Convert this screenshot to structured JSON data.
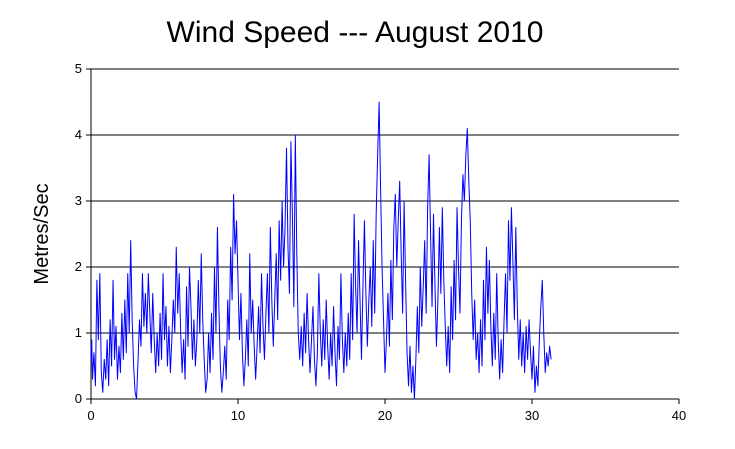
{
  "chart_data": {
    "type": "line",
    "title": "Wind Speed --- August 2010",
    "xlabel": "",
    "ylabel": "Metres/Sec",
    "xlim": [
      0,
      40
    ],
    "ylim": [
      0,
      5
    ],
    "x_ticks": [
      0,
      10,
      20,
      30,
      40
    ],
    "y_ticks": [
      0,
      1,
      2,
      3,
      4,
      5
    ],
    "grid": "horizontal",
    "legend": "none",
    "series": [
      {
        "name": "",
        "color": "#0000ff",
        "points": [
          [
            0.0,
            0.6
          ],
          [
            0.05,
            0.9
          ],
          [
            0.1,
            0.3
          ],
          [
            0.2,
            0.7
          ],
          [
            0.3,
            0.2
          ],
          [
            0.4,
            1.8
          ],
          [
            0.5,
            0.9
          ],
          [
            0.6,
            1.9
          ],
          [
            0.7,
            0.4
          ],
          [
            0.8,
            0.1
          ],
          [
            0.9,
            0.6
          ],
          [
            1.0,
            0.3
          ],
          [
            1.1,
            0.9
          ],
          [
            1.2,
            0.2
          ],
          [
            1.3,
            1.2
          ],
          [
            1.4,
            0.5
          ],
          [
            1.5,
            1.8
          ],
          [
            1.6,
            0.6
          ],
          [
            1.7,
            1.1
          ],
          [
            1.8,
            0.3
          ],
          [
            1.9,
            0.8
          ],
          [
            2.0,
            0.4
          ],
          [
            2.1,
            1.3
          ],
          [
            2.2,
            0.6
          ],
          [
            2.3,
            1.5
          ],
          [
            2.4,
            0.7
          ],
          [
            2.5,
            1.9
          ],
          [
            2.6,
            1.0
          ],
          [
            2.7,
            2.4
          ],
          [
            2.8,
            1.2
          ],
          [
            2.9,
            0.5
          ],
          [
            3.0,
            0.1
          ],
          [
            3.1,
            0.0
          ],
          [
            3.2,
            0.6
          ],
          [
            3.3,
            1.2
          ],
          [
            3.4,
            0.8
          ],
          [
            3.5,
            1.9
          ],
          [
            3.6,
            1.1
          ],
          [
            3.7,
            1.6
          ],
          [
            3.8,
            1.0
          ],
          [
            3.9,
            1.9
          ],
          [
            4.0,
            1.3
          ],
          [
            4.1,
            0.7
          ],
          [
            4.2,
            1.6
          ],
          [
            4.3,
            0.9
          ],
          [
            4.4,
            0.4
          ],
          [
            4.5,
            1.0
          ],
          [
            4.6,
            0.5
          ],
          [
            4.7,
            1.3
          ],
          [
            4.8,
            0.6
          ],
          [
            4.9,
            1.9
          ],
          [
            5.0,
            0.9
          ],
          [
            5.1,
            1.4
          ],
          [
            5.2,
            0.5
          ],
          [
            5.3,
            1.1
          ],
          [
            5.4,
            0.4
          ],
          [
            5.5,
            0.9
          ],
          [
            5.6,
            1.5
          ],
          [
            5.7,
            1.0
          ],
          [
            5.8,
            2.3
          ],
          [
            5.9,
            1.3
          ],
          [
            6.0,
            1.9
          ],
          [
            6.1,
            1.0
          ],
          [
            6.2,
            0.4
          ],
          [
            6.3,
            0.9
          ],
          [
            6.4,
            0.3
          ],
          [
            6.5,
            1.7
          ],
          [
            6.6,
            0.8
          ],
          [
            6.7,
            2.0
          ],
          [
            6.8,
            1.4
          ],
          [
            6.9,
            0.6
          ],
          [
            7.0,
            1.2
          ],
          [
            7.1,
            0.5
          ],
          [
            7.2,
            0.9
          ],
          [
            7.3,
            1.8
          ],
          [
            7.4,
            1.0
          ],
          [
            7.5,
            2.2
          ],
          [
            7.6,
            1.2
          ],
          [
            7.7,
            0.6
          ],
          [
            7.8,
            0.1
          ],
          [
            7.9,
            0.3
          ],
          [
            8.0,
            1.0
          ],
          [
            8.1,
            0.4
          ],
          [
            8.2,
            1.3
          ],
          [
            8.3,
            0.6
          ],
          [
            8.4,
            2.0
          ],
          [
            8.5,
            1.0
          ],
          [
            8.6,
            2.6
          ],
          [
            8.7,
            1.4
          ],
          [
            8.8,
            0.5
          ],
          [
            8.9,
            0.1
          ],
          [
            9.0,
            0.4
          ],
          [
            9.1,
            0.8
          ],
          [
            9.2,
            0.3
          ],
          [
            9.3,
            1.5
          ],
          [
            9.4,
            0.9
          ],
          [
            9.5,
            2.3
          ],
          [
            9.6,
            1.5
          ],
          [
            9.7,
            3.1
          ],
          [
            9.8,
            2.2
          ],
          [
            9.9,
            2.7
          ],
          [
            10.0,
            1.8
          ],
          [
            10.1,
            0.9
          ],
          [
            10.2,
            1.6
          ],
          [
            10.3,
            0.7
          ],
          [
            10.4,
            0.2
          ],
          [
            10.5,
            0.6
          ],
          [
            10.6,
            1.2
          ],
          [
            10.7,
            0.5
          ],
          [
            10.8,
            2.2
          ],
          [
            10.9,
            1.0
          ],
          [
            11.0,
            1.5
          ],
          [
            11.1,
            0.8
          ],
          [
            11.2,
            0.3
          ],
          [
            11.3,
            0.8
          ],
          [
            11.4,
            1.4
          ],
          [
            11.5,
            0.7
          ],
          [
            11.6,
            1.9
          ],
          [
            11.7,
            1.1
          ],
          [
            11.8,
            0.6
          ],
          [
            11.9,
            1.3
          ],
          [
            12.0,
            1.9
          ],
          [
            12.1,
            1.0
          ],
          [
            12.2,
            2.6
          ],
          [
            12.3,
            1.5
          ],
          [
            12.4,
            0.8
          ],
          [
            12.5,
            1.5
          ],
          [
            12.6,
            2.2
          ],
          [
            12.7,
            1.2
          ],
          [
            12.8,
            2.7
          ],
          [
            12.9,
            1.8
          ],
          [
            13.0,
            3.0
          ],
          [
            13.1,
            2.0
          ],
          [
            13.2,
            2.6
          ],
          [
            13.3,
            3.8
          ],
          [
            13.4,
            2.3
          ],
          [
            13.5,
            1.6
          ],
          [
            13.6,
            3.9
          ],
          [
            13.7,
            2.8
          ],
          [
            13.8,
            1.4
          ],
          [
            13.9,
            4.0
          ],
          [
            14.0,
            2.2
          ],
          [
            14.1,
            1.0
          ],
          [
            14.2,
            0.6
          ],
          [
            14.3,
            1.1
          ],
          [
            14.4,
            0.5
          ],
          [
            14.5,
            1.3
          ],
          [
            14.6,
            0.7
          ],
          [
            14.7,
            1.6
          ],
          [
            14.8,
            0.9
          ],
          [
            14.9,
            0.4
          ],
          [
            15.0,
            0.9
          ],
          [
            15.1,
            1.4
          ],
          [
            15.2,
            0.6
          ],
          [
            15.3,
            0.2
          ],
          [
            15.4,
            0.7
          ],
          [
            15.5,
            1.9
          ],
          [
            15.6,
            1.0
          ],
          [
            15.7,
            0.5
          ],
          [
            15.8,
            1.2
          ],
          [
            15.9,
            0.6
          ],
          [
            16.0,
            1.5
          ],
          [
            16.1,
            0.8
          ],
          [
            16.2,
            0.3
          ],
          [
            16.3,
            1.0
          ],
          [
            16.4,
            0.5
          ],
          [
            16.5,
            1.4
          ],
          [
            16.6,
            0.7
          ],
          [
            16.7,
            0.2
          ],
          [
            16.8,
            1.1
          ],
          [
            16.9,
            0.6
          ],
          [
            17.0,
            1.9
          ],
          [
            17.1,
            0.9
          ],
          [
            17.2,
            0.4
          ],
          [
            17.3,
            1.0
          ],
          [
            17.4,
            0.5
          ],
          [
            17.5,
            1.3
          ],
          [
            17.6,
            0.6
          ],
          [
            17.7,
            1.9
          ],
          [
            17.8,
            0.9
          ],
          [
            17.9,
            2.8
          ],
          [
            18.0,
            1.7
          ],
          [
            18.1,
            1.0
          ],
          [
            18.2,
            2.4
          ],
          [
            18.3,
            1.5
          ],
          [
            18.4,
            0.6
          ],
          [
            18.5,
            1.7
          ],
          [
            18.6,
            2.7
          ],
          [
            18.7,
            1.6
          ],
          [
            18.8,
            0.8
          ],
          [
            18.9,
            1.5
          ],
          [
            19.0,
            2.0
          ],
          [
            19.1,
            1.1
          ],
          [
            19.2,
            2.4
          ],
          [
            19.3,
            1.3
          ],
          [
            19.4,
            2.8
          ],
          [
            19.5,
            3.7
          ],
          [
            19.6,
            4.5
          ],
          [
            19.7,
            3.2
          ],
          [
            19.8,
            2.0
          ],
          [
            19.9,
            1.2
          ],
          [
            20.0,
            0.4
          ],
          [
            20.1,
            0.9
          ],
          [
            20.2,
            1.6
          ],
          [
            20.3,
            0.8
          ],
          [
            20.4,
            2.1
          ],
          [
            20.5,
            1.2
          ],
          [
            20.6,
            2.6
          ],
          [
            20.7,
            3.1
          ],
          [
            20.8,
            2.0
          ],
          [
            20.9,
            2.7
          ],
          [
            21.0,
            3.3
          ],
          [
            21.1,
            2.2
          ],
          [
            21.2,
            1.3
          ],
          [
            21.3,
            3.0
          ],
          [
            21.4,
            1.8
          ],
          [
            21.5,
            0.7
          ],
          [
            21.6,
            0.2
          ],
          [
            21.7,
            0.8
          ],
          [
            21.8,
            0.1
          ],
          [
            21.9,
            0.5
          ],
          [
            22.0,
            0.0
          ],
          [
            22.1,
            0.6
          ],
          [
            22.2,
            1.4
          ],
          [
            22.3,
            0.7
          ],
          [
            22.4,
            2.0
          ],
          [
            22.5,
            1.1
          ],
          [
            22.6,
            1.7
          ],
          [
            22.7,
            2.4
          ],
          [
            22.8,
            1.3
          ],
          [
            22.9,
            2.9
          ],
          [
            23.0,
            3.7
          ],
          [
            23.1,
            2.5
          ],
          [
            23.2,
            1.4
          ],
          [
            23.3,
            2.8
          ],
          [
            23.4,
            1.7
          ],
          [
            23.5,
            0.8
          ],
          [
            23.6,
            1.5
          ],
          [
            23.7,
            2.6
          ],
          [
            23.8,
            1.6
          ],
          [
            23.9,
            2.9
          ],
          [
            24.0,
            1.8
          ],
          [
            24.1,
            1.1
          ],
          [
            24.2,
            0.5
          ],
          [
            24.3,
            1.1
          ],
          [
            24.4,
            0.4
          ],
          [
            24.5,
            1.7
          ],
          [
            24.6,
            0.9
          ],
          [
            24.7,
            2.1
          ],
          [
            24.8,
            1.2
          ],
          [
            24.9,
            2.9
          ],
          [
            25.0,
            2.0
          ],
          [
            25.1,
            1.3
          ],
          [
            25.2,
            2.7
          ],
          [
            25.3,
            3.4
          ],
          [
            25.4,
            3.0
          ],
          [
            25.5,
            3.7
          ],
          [
            25.6,
            4.1
          ],
          [
            25.7,
            3.3
          ],
          [
            25.8,
            2.7
          ],
          [
            25.9,
            1.6
          ],
          [
            26.0,
            0.9
          ],
          [
            26.1,
            1.5
          ],
          [
            26.2,
            0.6
          ],
          [
            26.3,
            1.0
          ],
          [
            26.4,
            0.4
          ],
          [
            26.5,
            1.2
          ],
          [
            26.6,
            0.5
          ],
          [
            26.7,
            1.8
          ],
          [
            26.8,
            0.9
          ],
          [
            26.9,
            2.3
          ],
          [
            27.0,
            1.3
          ],
          [
            27.1,
            2.1
          ],
          [
            27.2,
            1.1
          ],
          [
            27.3,
            0.5
          ],
          [
            27.4,
            1.3
          ],
          [
            27.5,
            0.6
          ],
          [
            27.6,
            1.9
          ],
          [
            27.7,
            0.9
          ],
          [
            27.8,
            0.3
          ],
          [
            27.9,
            0.9
          ],
          [
            28.0,
            0.4
          ],
          [
            28.1,
            1.2
          ],
          [
            28.2,
            1.9
          ],
          [
            28.3,
            1.0
          ],
          [
            28.4,
            2.7
          ],
          [
            28.5,
            1.8
          ],
          [
            28.6,
            2.9
          ],
          [
            28.7,
            2.1
          ],
          [
            28.8,
            1.2
          ],
          [
            28.9,
            2.6
          ],
          [
            29.0,
            1.4
          ],
          [
            29.1,
            0.6
          ],
          [
            29.2,
            1.2
          ],
          [
            29.3,
            0.5
          ],
          [
            29.4,
            1.0
          ],
          [
            29.5,
            0.4
          ],
          [
            29.6,
            1.1
          ],
          [
            29.7,
            0.6
          ],
          [
            29.8,
            1.2
          ],
          [
            29.9,
            0.7
          ],
          [
            30.0,
            0.3
          ],
          [
            30.1,
            0.8
          ],
          [
            30.2,
            0.1
          ],
          [
            30.3,
            0.5
          ],
          [
            30.4,
            0.2
          ],
          [
            30.5,
            0.9
          ],
          [
            30.6,
            1.4
          ],
          [
            30.7,
            1.8
          ],
          [
            30.8,
            1.0
          ],
          [
            30.9,
            0.4
          ],
          [
            31.0,
            0.7
          ],
          [
            31.1,
            0.5
          ],
          [
            31.2,
            0.8
          ],
          [
            31.3,
            0.6
          ]
        ]
      }
    ]
  }
}
